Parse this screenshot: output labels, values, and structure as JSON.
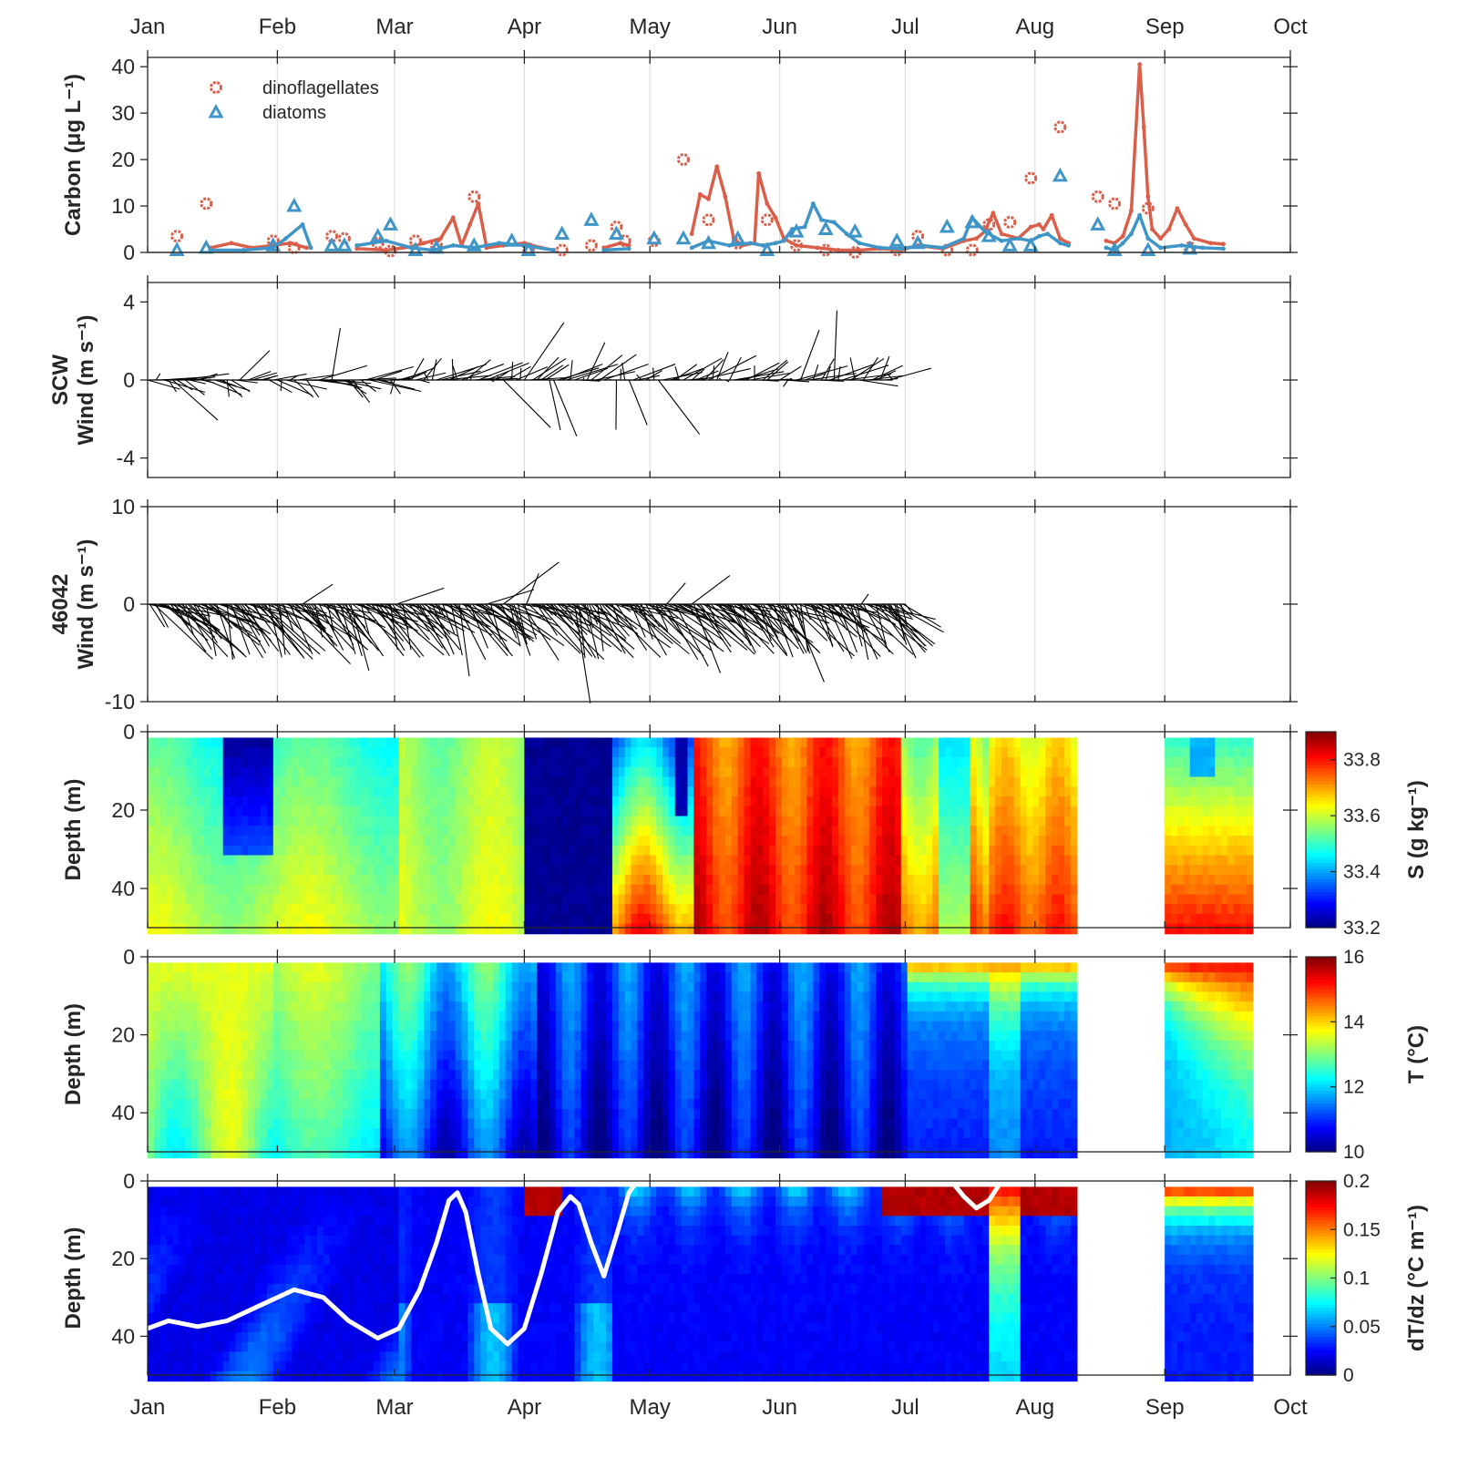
{
  "months": [
    "Jan",
    "Feb",
    "Mar",
    "Apr",
    "May",
    "Jun",
    "Jul",
    "Aug",
    "Sep",
    "Oct"
  ],
  "colors": {
    "dinoflagellates": "#d95f4a",
    "diatoms": "#3f95c8",
    "wind": "#000000",
    "mld_line": "#ffffff",
    "grid": "#e0e0e0",
    "axis": "#262626"
  },
  "chart_data": [
    {
      "type": "line",
      "panel": "carbon",
      "ylabel_lines": [
        "Carbon (μg L⁻¹)"
      ],
      "ylim": [
        0,
        42
      ],
      "yticks": [
        "0",
        "10",
        "20",
        "30",
        "40"
      ],
      "legend": {
        "position": "top-left",
        "entries": [
          "dinoflagellates",
          "diatoms"
        ]
      },
      "series": [
        {
          "name": "dinoflagellates",
          "marker": "circle",
          "points_discrete": [
            [
              "01-08",
              3.5
            ],
            [
              "01-15",
              10.5
            ],
            [
              "01-31",
              2.5
            ],
            [
              "02-05",
              1.0
            ],
            [
              "02-14",
              3.5
            ],
            [
              "02-17",
              3.0
            ],
            [
              "02-25",
              2.0
            ],
            [
              "02-28",
              0.3
            ],
            [
              "03-06",
              2.5
            ],
            [
              "03-11",
              1.5
            ],
            [
              "03-20",
              12
            ],
            [
              "04-02",
              0.8
            ],
            [
              "04-10",
              0.5
            ],
            [
              "04-17",
              1.5
            ],
            [
              "04-23",
              5.5
            ],
            [
              "04-25",
              2.5
            ],
            [
              "05-02",
              2.5
            ],
            [
              "05-09",
              20
            ],
            [
              "05-15",
              7.0
            ],
            [
              "05-22",
              2.0
            ],
            [
              "05-29",
              7.0
            ],
            [
              "06-05",
              1.5
            ],
            [
              "06-12",
              0.5
            ],
            [
              "06-19",
              0.0
            ],
            [
              "06-29",
              0.5
            ],
            [
              "07-04",
              3.5
            ],
            [
              "07-11",
              0.5
            ],
            [
              "07-17",
              0.5
            ],
            [
              "07-21",
              6.0
            ],
            [
              "07-26",
              6.5
            ],
            [
              "07-31",
              16
            ],
            [
              "08-07",
              27
            ],
            [
              "08-16",
              12
            ],
            [
              "08-20",
              10.5
            ],
            [
              "08-28",
              9.5
            ],
            [
              "09-07",
              1.0
            ]
          ],
          "points_continuous": [
            [
              "01-16",
              1.0
            ],
            [
              "01-21",
              2.0
            ],
            [
              "01-26",
              1.0
            ],
            [
              "01-31",
              1.5
            ],
            [
              "02-04",
              2.0
            ],
            [
              "02-08",
              1.0
            ],
            [
              "02-20",
              0.8
            ],
            [
              "02-27",
              0.5
            ],
            [
              "03-05",
              1.2
            ],
            [
              "03-08",
              2.0
            ],
            [
              "03-12",
              3.0
            ],
            [
              "03-15",
              7.5
            ],
            [
              "03-17",
              1.5
            ],
            [
              "03-19",
              6.0
            ],
            [
              "03-21",
              10.5
            ],
            [
              "03-23",
              1.0
            ],
            [
              "03-27",
              1.5
            ],
            [
              "04-01",
              2.0
            ],
            [
              "04-05",
              1.0
            ],
            [
              "04-08",
              0.5
            ],
            [
              "04-20",
              1.0
            ],
            [
              "04-24",
              2.0
            ],
            [
              "04-26",
              1.5
            ],
            [
              "05-11",
              4.0
            ],
            [
              "05-13",
              12.5
            ],
            [
              "05-15",
              11.5
            ],
            [
              "05-17",
              18.5
            ],
            [
              "05-19",
              12.0
            ],
            [
              "05-21",
              3.0
            ],
            [
              "05-23",
              1.5
            ],
            [
              "05-26",
              2.0
            ],
            [
              "05-27",
              17.0
            ],
            [
              "05-29",
              10.5
            ],
            [
              "05-31",
              7.5
            ],
            [
              "06-02",
              3.0
            ],
            [
              "06-05",
              1.5
            ],
            [
              "06-10",
              1.0
            ],
            [
              "06-15",
              0.5
            ],
            [
              "06-20",
              0.5
            ],
            [
              "06-25",
              0.8
            ],
            [
              "06-30",
              0.5
            ],
            [
              "07-04",
              1.5
            ],
            [
              "07-10",
              0.8
            ],
            [
              "07-15",
              2.5
            ],
            [
              "07-18",
              3.0
            ],
            [
              "07-20",
              4.5
            ],
            [
              "07-22",
              8.5
            ],
            [
              "07-24",
              4.0
            ],
            [
              "07-28",
              3.0
            ],
            [
              "07-31",
              5.5
            ],
            [
              "08-02",
              6.0
            ],
            [
              "08-03",
              5.0
            ],
            [
              "08-05",
              8.0
            ],
            [
              "08-07",
              3.0
            ],
            [
              "08-09",
              2.0
            ],
            [
              "08-18",
              2.5
            ],
            [
              "08-20",
              2.0
            ],
            [
              "08-22",
              3.5
            ],
            [
              "08-24",
              9.0
            ],
            [
              "08-26",
              40.5
            ],
            [
              "08-27",
              27.0
            ],
            [
              "08-28",
              12.0
            ],
            [
              "08-29",
              5.0
            ],
            [
              "08-31",
              3.0
            ],
            [
              "09-02",
              5.0
            ],
            [
              "09-04",
              9.5
            ],
            [
              "09-06",
              6.0
            ],
            [
              "09-08",
              3.0
            ],
            [
              "09-12",
              2.0
            ],
            [
              "09-15",
              1.8
            ]
          ]
        },
        {
          "name": "diatoms",
          "marker": "triangle",
          "points_discrete": [
            [
              "01-08",
              0.5
            ],
            [
              "01-15",
              1.0
            ],
            [
              "01-31",
              1.5
            ],
            [
              "02-05",
              10.0
            ],
            [
              "02-14",
              1.5
            ],
            [
              "02-17",
              1.5
            ],
            [
              "02-25",
              3.5
            ],
            [
              "02-28",
              6.0
            ],
            [
              "03-06",
              0.5
            ],
            [
              "03-11",
              1.0
            ],
            [
              "03-20",
              1.5
            ],
            [
              "03-29",
              2.5
            ],
            [
              "04-02",
              0.5
            ],
            [
              "04-10",
              4.0
            ],
            [
              "04-17",
              7.0
            ],
            [
              "04-23",
              4.0
            ],
            [
              "05-02",
              3.0
            ],
            [
              "05-09",
              3.0
            ],
            [
              "05-15",
              2.0
            ],
            [
              "05-22",
              3.0
            ],
            [
              "05-29",
              0.5
            ],
            [
              "06-05",
              4.5
            ],
            [
              "06-12",
              5.0
            ],
            [
              "06-19",
              4.5
            ],
            [
              "06-29",
              2.5
            ],
            [
              "07-04",
              2.0
            ],
            [
              "07-11",
              5.5
            ],
            [
              "07-17",
              6.5
            ],
            [
              "07-21",
              3.5
            ],
            [
              "07-26",
              1.5
            ],
            [
              "07-31",
              1.5
            ],
            [
              "08-07",
              16.5
            ],
            [
              "08-16",
              6.0
            ],
            [
              "08-20",
              0.5
            ],
            [
              "08-28",
              0.5
            ],
            [
              "09-07",
              0.8
            ]
          ],
          "points_continuous": [
            [
              "01-16",
              0.5
            ],
            [
              "01-24",
              0.5
            ],
            [
              "01-31",
              1.0
            ],
            [
              "02-03",
              3.0
            ],
            [
              "02-07",
              6.0
            ],
            [
              "02-09",
              1.0
            ],
            [
              "02-20",
              1.5
            ],
            [
              "02-27",
              2.5
            ],
            [
              "03-05",
              1.0
            ],
            [
              "03-10",
              0.5
            ],
            [
              "03-15",
              1.5
            ],
            [
              "03-20",
              1.0
            ],
            [
              "03-26",
              2.0
            ],
            [
              "04-01",
              1.5
            ],
            [
              "04-08",
              0.5
            ],
            [
              "04-20",
              0.5
            ],
            [
              "04-26",
              0.8
            ],
            [
              "05-11",
              1.0
            ],
            [
              "05-15",
              2.5
            ],
            [
              "05-20",
              1.5
            ],
            [
              "05-25",
              2.0
            ],
            [
              "05-28",
              1.5
            ],
            [
              "05-31",
              2.0
            ],
            [
              "06-02",
              2.5
            ],
            [
              "06-04",
              5.0
            ],
            [
              "06-07",
              5.5
            ],
            [
              "06-09",
              10.5
            ],
            [
              "06-11",
              7.0
            ],
            [
              "06-14",
              6.5
            ],
            [
              "06-17",
              4.0
            ],
            [
              "06-20",
              2.0
            ],
            [
              "06-25",
              1.0
            ],
            [
              "06-30",
              0.8
            ],
            [
              "07-05",
              1.5
            ],
            [
              "07-10",
              1.0
            ],
            [
              "07-15",
              3.0
            ],
            [
              "07-17",
              7.5
            ],
            [
              "07-20",
              4.5
            ],
            [
              "07-24",
              2.5
            ],
            [
              "07-28",
              3.0
            ],
            [
              "07-31",
              2.5
            ],
            [
              "08-02",
              3.5
            ],
            [
              "08-04",
              4.0
            ],
            [
              "08-07",
              2.0
            ],
            [
              "08-09",
              1.5
            ],
            [
              "08-18",
              1.0
            ],
            [
              "08-20",
              0.5
            ],
            [
              "08-22",
              2.0
            ],
            [
              "08-24",
              4.0
            ],
            [
              "08-26",
              8.0
            ],
            [
              "08-28",
              3.0
            ],
            [
              "08-31",
              1.0
            ],
            [
              "09-05",
              1.5
            ],
            [
              "09-10",
              1.0
            ],
            [
              "09-15",
              0.8
            ]
          ]
        }
      ]
    },
    {
      "type": "quiver",
      "panel": "wind_scw",
      "ylabel_lines": [
        "SCW",
        "Wind (m s⁻¹)"
      ],
      "ylim": [
        -5,
        5
      ],
      "yticks": [
        "-4",
        "0",
        "4"
      ],
      "data_range": [
        "01-01",
        "06-28"
      ]
    },
    {
      "type": "quiver",
      "panel": "wind_46042",
      "ylabel_lines": [
        "46042",
        "Wind (m s⁻¹)"
      ],
      "ylim": [
        -10,
        10
      ],
      "yticks": [
        "-10",
        "0",
        "10"
      ],
      "data_range": [
        "01-01",
        "07-01"
      ]
    },
    {
      "type": "heatmap",
      "panel": "salinity",
      "ylabel_lines": [
        "Depth (m)"
      ],
      "ylim": [
        0,
        50
      ],
      "yticks": [
        "0",
        "20",
        "40"
      ],
      "colorbar": {
        "label": "S (g kg⁻¹)",
        "range": [
          33.2,
          33.9
        ],
        "ticks": [
          "33.2",
          "33.4",
          "33.6",
          "33.8"
        ]
      },
      "data_range": [
        [
          "01-01",
          "08-10"
        ],
        [
          "09-01",
          "09-22"
        ]
      ]
    },
    {
      "type": "heatmap",
      "panel": "temperature",
      "ylabel_lines": [
        "Depth (m)"
      ],
      "ylim": [
        0,
        50
      ],
      "yticks": [
        "0",
        "20",
        "40"
      ],
      "colorbar": {
        "label": "T (°C)",
        "range": [
          10,
          16
        ],
        "ticks": [
          "10",
          "12",
          "14",
          "16"
        ]
      },
      "data_range": [
        [
          "01-01",
          "08-10"
        ],
        [
          "09-01",
          "09-22"
        ]
      ]
    },
    {
      "type": "heatmap",
      "panel": "stratification",
      "ylabel_lines": [
        "Depth (m)"
      ],
      "ylim": [
        0,
        50
      ],
      "yticks": [
        "0",
        "20",
        "40"
      ],
      "colorbar": {
        "label": "dT/dz (°C m⁻¹)",
        "range": [
          0,
          0.2
        ],
        "ticks": [
          "0",
          "0.05",
          "0.1",
          "0.15",
          "0.2"
        ]
      },
      "data_range": [
        [
          "01-01",
          "08-10"
        ],
        [
          "09-01",
          "09-22"
        ]
      ],
      "overlay_line_depth": [
        [
          "01-01",
          38
        ],
        [
          "01-06",
          36
        ],
        [
          "01-13",
          37.5
        ],
        [
          "01-20",
          36
        ],
        [
          "01-28",
          32
        ],
        [
          "02-05",
          28
        ],
        [
          "02-12",
          30
        ],
        [
          "02-18",
          36
        ],
        [
          "02-25",
          40.5
        ],
        [
          "03-02",
          38
        ],
        [
          "03-07",
          28
        ],
        [
          "03-11",
          16
        ],
        [
          "03-14",
          5
        ],
        [
          "03-16",
          3
        ],
        [
          "03-18",
          8
        ],
        [
          "03-21",
          24
        ],
        [
          "03-24",
          38
        ],
        [
          "03-28",
          42
        ],
        [
          "04-01",
          38
        ],
        [
          "04-05",
          24
        ],
        [
          "04-09",
          8
        ],
        [
          "04-12",
          4
        ],
        [
          "04-14",
          6
        ],
        [
          "04-17",
          16
        ],
        [
          "04-20",
          24.5
        ],
        [
          "04-23",
          14
        ],
        [
          "04-26",
          3
        ],
        [
          "04-28",
          0
        ],
        [
          "07-12",
          0
        ],
        [
          "07-15",
          4
        ],
        [
          "07-18",
          7
        ],
        [
          "07-21",
          5
        ],
        [
          "07-24",
          0
        ]
      ]
    }
  ]
}
